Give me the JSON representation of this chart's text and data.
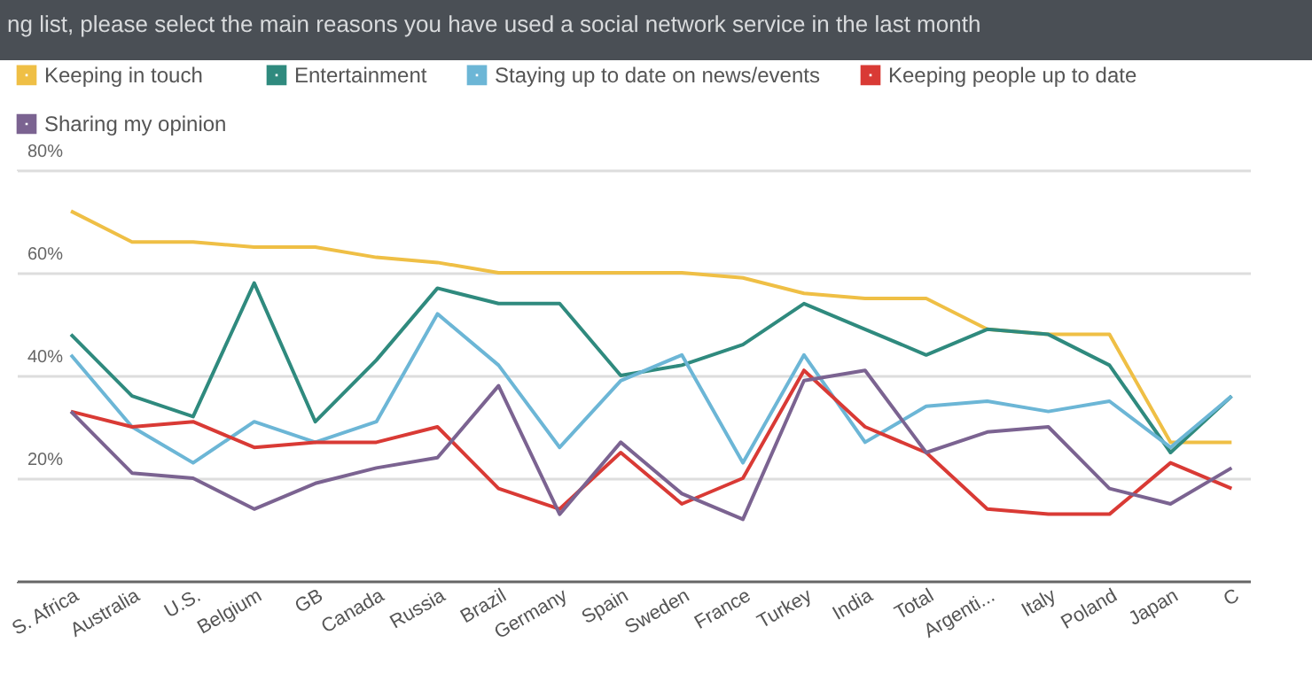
{
  "chart_data": {
    "type": "line",
    "title": "ng list, please select the main reasons you have used a social network service in the last month",
    "categories": [
      "S. Africa",
      "Australia",
      "U.S.",
      "Belgium",
      "GB",
      "Canada",
      "Russia",
      "Brazil",
      "Germany",
      "Spain",
      "Sweden",
      "France",
      "Turkey",
      "India",
      "Total",
      "Argenti...",
      "Italy",
      "Poland",
      "Japan",
      "C"
    ],
    "series": [
      {
        "name": "Keeping in touch",
        "color": "#efbf45",
        "values": [
          72,
          66,
          66,
          65,
          65,
          63,
          62,
          60,
          60,
          60,
          60,
          59,
          56,
          55,
          55,
          49,
          48,
          48,
          27,
          27
        ]
      },
      {
        "name": "Entertainment",
        "color": "#2f8a7e",
        "values": [
          48,
          36,
          32,
          58,
          31,
          43,
          57,
          54,
          54,
          40,
          42,
          46,
          54,
          49,
          44,
          49,
          48,
          42,
          25,
          36
        ]
      },
      {
        "name": "Staying up to date on news/events",
        "color": "#6cb6d6",
        "values": [
          44,
          30,
          23,
          31,
          27,
          31,
          52,
          42,
          26,
          39,
          44,
          23,
          44,
          27,
          34,
          35,
          33,
          35,
          26,
          36
        ]
      },
      {
        "name": "Keeping people up to date",
        "color": "#d93a35",
        "values": [
          33,
          30,
          31,
          26,
          27,
          27,
          30,
          18,
          14,
          25,
          15,
          20,
          41,
          30,
          25,
          14,
          13,
          13,
          23,
          18
        ]
      },
      {
        "name": "Sharing my opinion",
        "color": "#7b6391",
        "values": [
          33,
          21,
          20,
          14,
          19,
          22,
          24,
          38,
          13,
          27,
          17,
          12,
          39,
          41,
          25,
          29,
          30,
          18,
          15,
          22
        ]
      }
    ],
    "ylim": [
      0,
      80
    ],
    "yticks": [
      {
        "value": 20,
        "label": "20%"
      },
      {
        "value": 40,
        "label": "40%"
      },
      {
        "value": 60,
        "label": "60%"
      },
      {
        "value": 80,
        "label": "80%"
      }
    ],
    "grid": "y",
    "legend": "top",
    "marker": "none",
    "line_style": "solid"
  }
}
